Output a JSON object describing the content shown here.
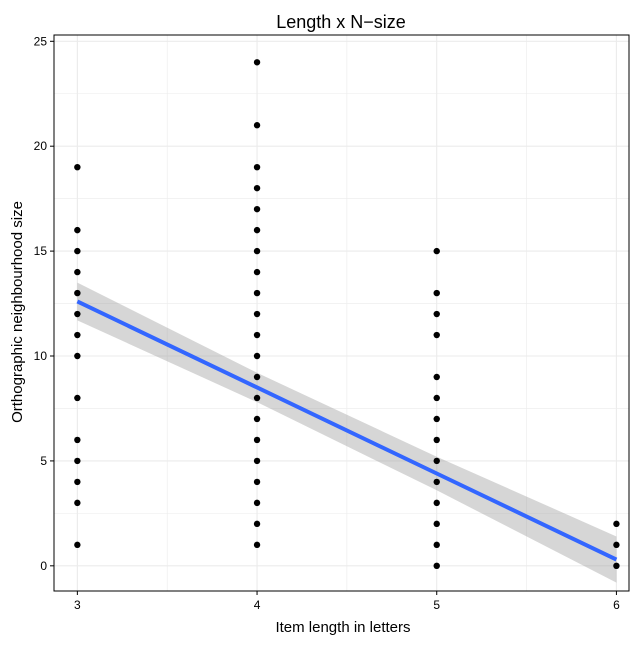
{
  "chart_data": {
    "type": "scatter",
    "title": "Length x N−size",
    "xlabel": "Item length in letters",
    "ylabel": "Orthographic neighbourhood size",
    "xlim": [
      2.87,
      6.07
    ],
    "ylim": [
      -1.2,
      25.3
    ],
    "x_ticks": [
      3,
      4,
      5,
      6
    ],
    "y_ticks": [
      0,
      5,
      10,
      15,
      20,
      25
    ],
    "grid": true,
    "legend": "none",
    "colors": {
      "points": "#000000",
      "fit_line": "#3366FF",
      "ribbon": "#999999",
      "grid": "#ebebeb",
      "panel_border": "#000000"
    },
    "points": [
      {
        "x": 3,
        "y": 1
      },
      {
        "x": 3,
        "y": 3
      },
      {
        "x": 3,
        "y": 4
      },
      {
        "x": 3,
        "y": 5
      },
      {
        "x": 3,
        "y": 6
      },
      {
        "x": 3,
        "y": 8
      },
      {
        "x": 3,
        "y": 10
      },
      {
        "x": 3,
        "y": 11
      },
      {
        "x": 3,
        "y": 12
      },
      {
        "x": 3,
        "y": 13
      },
      {
        "x": 3,
        "y": 14
      },
      {
        "x": 3,
        "y": 15
      },
      {
        "x": 3,
        "y": 16
      },
      {
        "x": 3,
        "y": 19
      },
      {
        "x": 4,
        "y": 1
      },
      {
        "x": 4,
        "y": 2
      },
      {
        "x": 4,
        "y": 3
      },
      {
        "x": 4,
        "y": 4
      },
      {
        "x": 4,
        "y": 5
      },
      {
        "x": 4,
        "y": 6
      },
      {
        "x": 4,
        "y": 7
      },
      {
        "x": 4,
        "y": 8
      },
      {
        "x": 4,
        "y": 9
      },
      {
        "x": 4,
        "y": 10
      },
      {
        "x": 4,
        "y": 11
      },
      {
        "x": 4,
        "y": 12
      },
      {
        "x": 4,
        "y": 13
      },
      {
        "x": 4,
        "y": 14
      },
      {
        "x": 4,
        "y": 15
      },
      {
        "x": 4,
        "y": 16
      },
      {
        "x": 4,
        "y": 17
      },
      {
        "x": 4,
        "y": 18
      },
      {
        "x": 4,
        "y": 19
      },
      {
        "x": 4,
        "y": 21
      },
      {
        "x": 4,
        "y": 24
      },
      {
        "x": 5,
        "y": 0
      },
      {
        "x": 5,
        "y": 1
      },
      {
        "x": 5,
        "y": 2
      },
      {
        "x": 5,
        "y": 3
      },
      {
        "x": 5,
        "y": 4
      },
      {
        "x": 5,
        "y": 5
      },
      {
        "x": 5,
        "y": 6
      },
      {
        "x": 5,
        "y": 7
      },
      {
        "x": 5,
        "y": 8
      },
      {
        "x": 5,
        "y": 9
      },
      {
        "x": 5,
        "y": 11
      },
      {
        "x": 5,
        "y": 12
      },
      {
        "x": 5,
        "y": 13
      },
      {
        "x": 5,
        "y": 15
      },
      {
        "x": 6,
        "y": 0
      },
      {
        "x": 6,
        "y": 1
      },
      {
        "x": 6,
        "y": 2
      }
    ],
    "fit": {
      "method": "linear",
      "x": [
        3,
        4,
        5,
        6
      ],
      "y": [
        12.6,
        8.5,
        4.4,
        0.3
      ],
      "ci_lower": [
        11.7,
        7.8,
        3.6,
        -0.8
      ],
      "ci_upper": [
        13.5,
        9.2,
        5.2,
        1.4
      ]
    }
  }
}
